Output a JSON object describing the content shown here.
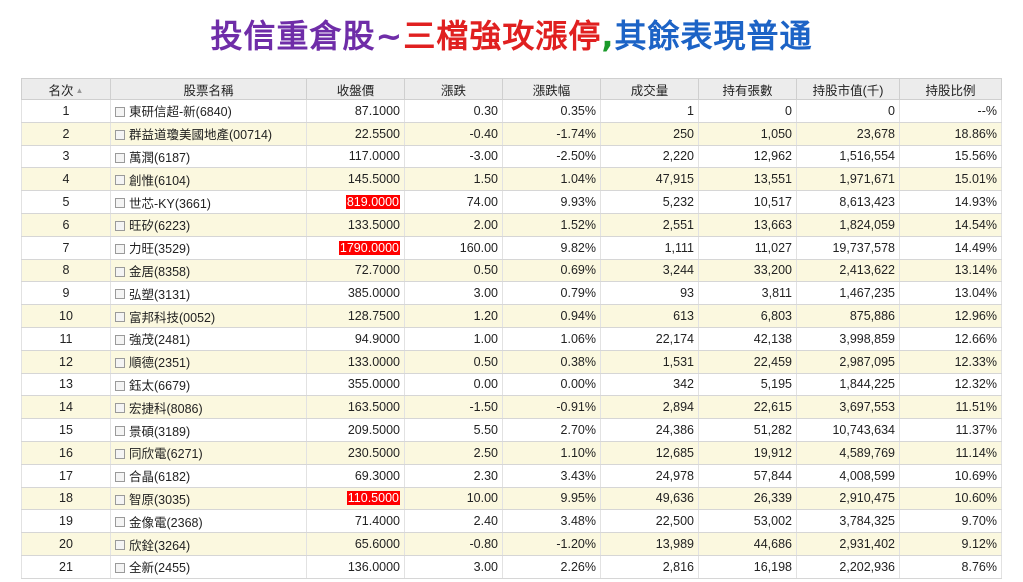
{
  "title": {
    "part1": "投信重倉股~",
    "part2": "三檔強攻漲停",
    "part3": ",",
    "part4": "其餘表現普通"
  },
  "colors": {
    "up": "#e00000",
    "down": "#009900",
    "limit_up_highlight": "#ff0000",
    "even_row": "#fbf8df"
  },
  "table": {
    "headers": [
      "名次",
      "股票名稱",
      "收盤價",
      "漲跌",
      "漲跌幅",
      "成交量",
      "持有張數",
      "持股市值(千)",
      "持股比例"
    ],
    "sort_icon": "sort-arrows-icon",
    "rows": [
      {
        "rank": "1",
        "name": "東研信超-新(6840)",
        "close": "87.1000",
        "change": "0.30",
        "pct": "0.35%",
        "volume": "1",
        "shares": "0",
        "value": "0",
        "ratio": "--%",
        "dir": "up",
        "limit": false
      },
      {
        "rank": "2",
        "name": "群益道瓊美國地產(00714)",
        "close": "22.5500",
        "change": "-0.40",
        "pct": "-1.74%",
        "volume": "250",
        "shares": "1,050",
        "value": "23,678",
        "ratio": "18.86%",
        "dir": "down",
        "limit": false
      },
      {
        "rank": "3",
        "name": "萬潤(6187)",
        "close": "117.0000",
        "change": "-3.00",
        "pct": "-2.50%",
        "volume": "2,220",
        "shares": "12,962",
        "value": "1,516,554",
        "ratio": "15.56%",
        "dir": "down",
        "limit": false
      },
      {
        "rank": "4",
        "name": "創惟(6104)",
        "close": "145.5000",
        "change": "1.50",
        "pct": "1.04%",
        "volume": "47,915",
        "shares": "13,551",
        "value": "1,971,671",
        "ratio": "15.01%",
        "dir": "up",
        "limit": false
      },
      {
        "rank": "5",
        "name": "世芯-KY(3661)",
        "close": "819.0000",
        "change": "74.00",
        "pct": "9.93%",
        "volume": "5,232",
        "shares": "10,517",
        "value": "8,613,423",
        "ratio": "14.93%",
        "dir": "up",
        "limit": true
      },
      {
        "rank": "6",
        "name": "旺矽(6223)",
        "close": "133.5000",
        "change": "2.00",
        "pct": "1.52%",
        "volume": "2,551",
        "shares": "13,663",
        "value": "1,824,059",
        "ratio": "14.54%",
        "dir": "up",
        "limit": false
      },
      {
        "rank": "7",
        "name": "力旺(3529)",
        "close": "1790.0000",
        "change": "160.00",
        "pct": "9.82%",
        "volume": "1,111",
        "shares": "11,027",
        "value": "19,737,578",
        "ratio": "14.49%",
        "dir": "up",
        "limit": true
      },
      {
        "rank": "8",
        "name": "金居(8358)",
        "close": "72.7000",
        "change": "0.50",
        "pct": "0.69%",
        "volume": "3,244",
        "shares": "33,200",
        "value": "2,413,622",
        "ratio": "13.14%",
        "dir": "up",
        "limit": false
      },
      {
        "rank": "9",
        "name": "弘塑(3131)",
        "close": "385.0000",
        "change": "3.00",
        "pct": "0.79%",
        "volume": "93",
        "shares": "3,811",
        "value": "1,467,235",
        "ratio": "13.04%",
        "dir": "up",
        "limit": false
      },
      {
        "rank": "10",
        "name": "富邦科技(0052)",
        "close": "128.7500",
        "change": "1.20",
        "pct": "0.94%",
        "volume": "613",
        "shares": "6,803",
        "value": "875,886",
        "ratio": "12.96%",
        "dir": "up",
        "limit": false
      },
      {
        "rank": "11",
        "name": "強茂(2481)",
        "close": "94.9000",
        "change": "1.00",
        "pct": "1.06%",
        "volume": "22,174",
        "shares": "42,138",
        "value": "3,998,859",
        "ratio": "12.66%",
        "dir": "up",
        "limit": false
      },
      {
        "rank": "12",
        "name": "順德(2351)",
        "close": "133.0000",
        "change": "0.50",
        "pct": "0.38%",
        "volume": "1,531",
        "shares": "22,459",
        "value": "2,987,095",
        "ratio": "12.33%",
        "dir": "up",
        "limit": false
      },
      {
        "rank": "13",
        "name": "鈺太(6679)",
        "close": "355.0000",
        "change": "0.00",
        "pct": "0.00%",
        "volume": "342",
        "shares": "5,195",
        "value": "1,844,225",
        "ratio": "12.32%",
        "dir": "flat",
        "limit": false
      },
      {
        "rank": "14",
        "name": "宏捷科(8086)",
        "close": "163.5000",
        "change": "-1.50",
        "pct": "-0.91%",
        "volume": "2,894",
        "shares": "22,615",
        "value": "3,697,553",
        "ratio": "11.51%",
        "dir": "down",
        "limit": false
      },
      {
        "rank": "15",
        "name": "景碩(3189)",
        "close": "209.5000",
        "change": "5.50",
        "pct": "2.70%",
        "volume": "24,386",
        "shares": "51,282",
        "value": "10,743,634",
        "ratio": "11.37%",
        "dir": "up",
        "limit": false
      },
      {
        "rank": "16",
        "name": "同欣電(6271)",
        "close": "230.5000",
        "change": "2.50",
        "pct": "1.10%",
        "volume": "12,685",
        "shares": "19,912",
        "value": "4,589,769",
        "ratio": "11.14%",
        "dir": "up",
        "limit": false
      },
      {
        "rank": "17",
        "name": "合晶(6182)",
        "close": "69.3000",
        "change": "2.30",
        "pct": "3.43%",
        "volume": "24,978",
        "shares": "57,844",
        "value": "4,008,599",
        "ratio": "10.69%",
        "dir": "up",
        "limit": false
      },
      {
        "rank": "18",
        "name": "智原(3035)",
        "close": "110.5000",
        "change": "10.00",
        "pct": "9.95%",
        "volume": "49,636",
        "shares": "26,339",
        "value": "2,910,475",
        "ratio": "10.60%",
        "dir": "up",
        "limit": true
      },
      {
        "rank": "19",
        "name": "金像電(2368)",
        "close": "71.4000",
        "change": "2.40",
        "pct": "3.48%",
        "volume": "22,500",
        "shares": "53,002",
        "value": "3,784,325",
        "ratio": "9.70%",
        "dir": "up",
        "limit": false
      },
      {
        "rank": "20",
        "name": "欣銓(3264)",
        "close": "65.6000",
        "change": "-0.80",
        "pct": "-1.20%",
        "volume": "13,989",
        "shares": "44,686",
        "value": "2,931,402",
        "ratio": "9.12%",
        "dir": "down",
        "limit": false
      },
      {
        "rank": "21",
        "name": "全新(2455)",
        "close": "136.0000",
        "change": "3.00",
        "pct": "2.26%",
        "volume": "2,816",
        "shares": "16,198",
        "value": "2,202,936",
        "ratio": "8.76%",
        "dir": "up",
        "limit": false
      }
    ]
  }
}
